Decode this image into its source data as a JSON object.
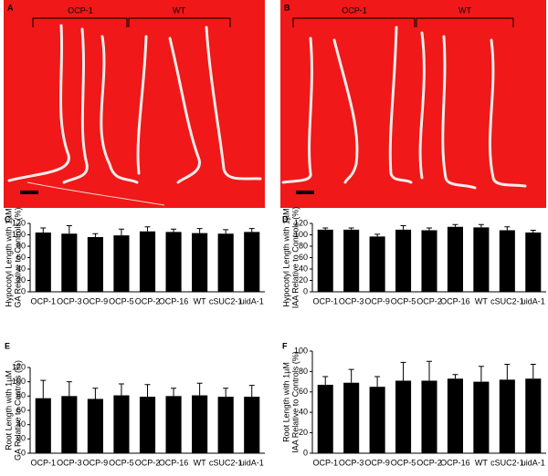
{
  "photo_panels": [
    {
      "label": "A",
      "groups": [
        "OCP-1",
        "WT"
      ]
    },
    {
      "label": "B",
      "groups": [
        "OCP-1",
        "WT"
      ]
    }
  ],
  "chart_data": [
    {
      "type": "bar",
      "panel": "C",
      "ylabel": [
        "Hypocotyl Length with 1µM",
        "GA Relative to Controls (%)"
      ],
      "categories": [
        "OCP-1",
        "OCP-3",
        "OCP-9",
        "OCP-5",
        "OCP-2",
        "OCP-16",
        "WT",
        "cSUC2-1",
        "uidA-1"
      ],
      "values": [
        104,
        102,
        96,
        99,
        106,
        105,
        103,
        102,
        105
      ],
      "errors": [
        8,
        14,
        6,
        11,
        8,
        5,
        8,
        7,
        6
      ],
      "color": "#000000",
      "ylim": [
        0,
        120
      ],
      "yticks": [
        0,
        20,
        40,
        60,
        80,
        100,
        120
      ]
    },
    {
      "type": "bar",
      "panel": "D",
      "ylabel": [
        "Hypocotyl Length with 1µM",
        "IAA Relative to Controls (%)"
      ],
      "categories": [
        "OCP-1",
        "OCP-3",
        "OCP-9",
        "OCP-5",
        "OCP-2",
        "OCP-16",
        "WT",
        "cSUC2-1",
        "uidA-1"
      ],
      "values": [
        109,
        109,
        97,
        109,
        108,
        114,
        113,
        108,
        104
      ],
      "errors": [
        3,
        3,
        4,
        7,
        4,
        4,
        5,
        6,
        4
      ],
      "color": "#000000",
      "ylim": [
        0,
        120
      ],
      "yticks": [
        0,
        20,
        40,
        60,
        80,
        100,
        120
      ]
    },
    {
      "type": "bar",
      "panel": "E",
      "ylabel": [
        "Root Length with 1µM",
        "GA Relative to Controls (%)"
      ],
      "categories": [
        "OCP-1",
        "OCP-3",
        "OCP-9",
        "OCP-5",
        "OCP-2",
        "OCP-16",
        "WT",
        "cSUC2-1",
        "uidA-1"
      ],
      "values": [
        77,
        80,
        76,
        81,
        79,
        80,
        81,
        79,
        79
      ],
      "errors": [
        25,
        20,
        15,
        16,
        17,
        11,
        17,
        12,
        16
      ],
      "color": "#000000",
      "ylim": [
        0,
        120
      ],
      "yticks": [
        0,
        20,
        40,
        60,
        80,
        100,
        120
      ]
    },
    {
      "type": "bar",
      "panel": "F",
      "ylabel": [
        "Root Length with 1µM",
        "IAA Relative to Controls (%)"
      ],
      "categories": [
        "OCP-1",
        "OCP-3",
        "OCP-9",
        "OCP-5",
        "OCP-2",
        "OCP-16",
        "WT",
        "cSUC2-1",
        "uidA-1"
      ],
      "values": [
        67,
        69,
        65,
        71,
        71,
        73,
        70,
        72,
        73
      ],
      "errors": [
        8,
        13,
        10,
        18,
        19,
        4,
        15,
        15,
        14
      ],
      "color": "#000000",
      "ylim": [
        0,
        100
      ],
      "yticks": [
        0,
        20,
        40,
        60,
        80,
        100
      ]
    }
  ]
}
